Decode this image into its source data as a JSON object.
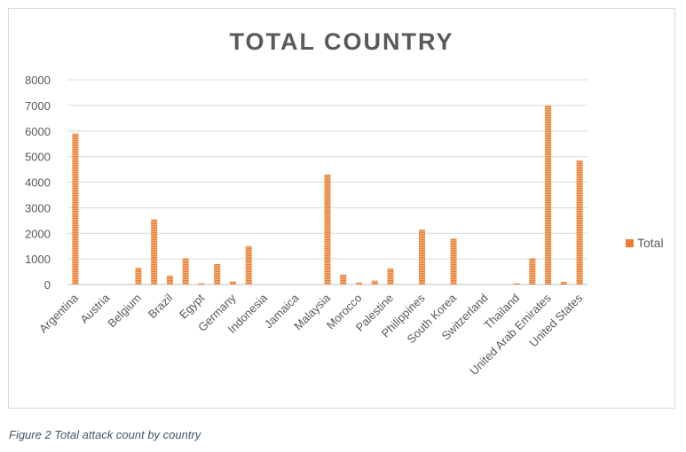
{
  "caption": "Figure 2 Total attack count by country",
  "chart_data": {
    "type": "bar",
    "title": "TOTAL COUNTRY",
    "xlabel": "",
    "ylabel": "",
    "ylim": [
      0,
      8000
    ],
    "yticks": [
      0,
      1000,
      2000,
      3000,
      4000,
      5000,
      6000,
      7000,
      8000
    ],
    "grid": true,
    "legend_position": "right",
    "bar_color": "#ed7d31",
    "categories": [
      "Argentina",
      "",
      "Austria",
      "",
      "Belgium",
      "",
      "Brazil",
      "",
      "Egypt",
      "",
      "Germany",
      "",
      "Indonesia",
      "",
      "Jamaica",
      "",
      "Malaysia",
      "",
      "Morocco",
      "",
      "Palestine",
      "",
      "Philippines",
      "",
      "South Korea",
      "",
      "Switzerland",
      "",
      "Thailand",
      "",
      "United Arab Emirates",
      "",
      "United States"
    ],
    "series": [
      {
        "name": "Total",
        "values": [
          5900,
          0,
          0,
          0,
          650,
          2550,
          350,
          1030,
          50,
          800,
          120,
          1500,
          0,
          0,
          0,
          0,
          4300,
          380,
          80,
          150,
          630,
          0,
          2150,
          0,
          1800,
          0,
          0,
          0,
          50,
          1030,
          7000,
          100,
          4850
        ]
      }
    ]
  }
}
